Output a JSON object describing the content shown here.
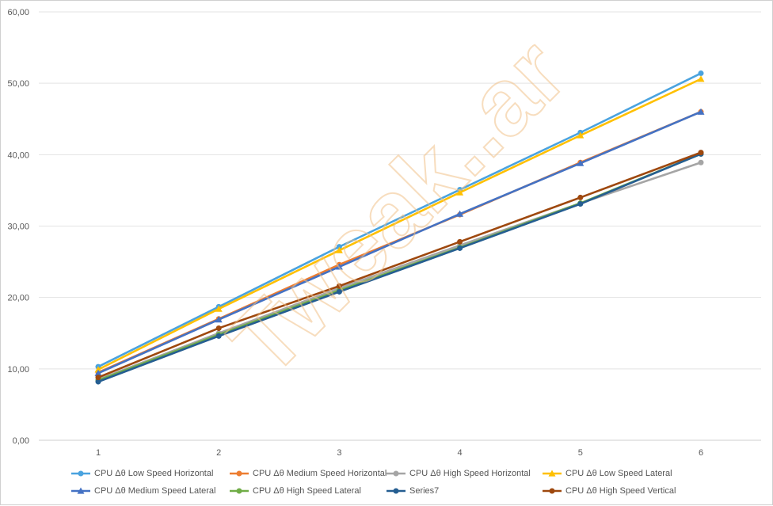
{
  "chart_data": {
    "type": "line",
    "title": "",
    "xlabel": "",
    "ylabel": "",
    "categories": [
      "1",
      "2",
      "3",
      "4",
      "5",
      "6"
    ],
    "ylim": [
      0,
      60
    ],
    "yticks": [
      "0,00",
      "10,00",
      "20,00",
      "30,00",
      "40,00",
      "50,00",
      "60,00"
    ],
    "grid": true,
    "legend": "bottom",
    "series": [
      {
        "name": "CPU Δθ Low Speed Horizontal",
        "color": "#4aa3df",
        "marker": "circle",
        "values": [
          10.3,
          18.7,
          27.1,
          35.1,
          43.1,
          51.4
        ]
      },
      {
        "name": "CPU Δθ Medium Speed Horizontal",
        "color": "#ed7d31",
        "marker": "circle",
        "values": [
          9.5,
          17.0,
          24.6,
          31.6,
          38.9,
          46.0
        ]
      },
      {
        "name": "CPU Δθ High Speed Horizontal",
        "color": "#a5a5a5",
        "marker": "circle",
        "values": [
          8.5,
          15.0,
          21.3,
          27.3,
          33.2,
          38.9
        ]
      },
      {
        "name": "CPU Δθ Low Speed Lateral",
        "color": "#ffc000",
        "marker": "triangle",
        "values": [
          9.9,
          18.4,
          26.6,
          34.7,
          42.7,
          50.6
        ]
      },
      {
        "name": "CPU Δθ Medium Speed Lateral",
        "color": "#4472c4",
        "marker": "triangle",
        "values": [
          9.4,
          16.9,
          24.3,
          31.7,
          38.8,
          46.0
        ]
      },
      {
        "name": "CPU Δθ High Speed Lateral",
        "color": "#70ad47",
        "marker": "circle",
        "values": [
          8.4,
          14.8,
          21.0,
          27.0,
          33.2,
          40.1
        ]
      },
      {
        "name": "Series7",
        "color": "#255e91",
        "marker": "circle",
        "values": [
          8.2,
          14.6,
          20.8,
          26.9,
          33.1,
          40.1
        ]
      },
      {
        "name": "CPU Δθ High Speed Vertical",
        "color": "#9e480e",
        "marker": "circle",
        "values": [
          8.8,
          15.7,
          21.6,
          27.8,
          34.0,
          40.3
        ]
      }
    ]
  },
  "watermark": "Tweak..ar"
}
